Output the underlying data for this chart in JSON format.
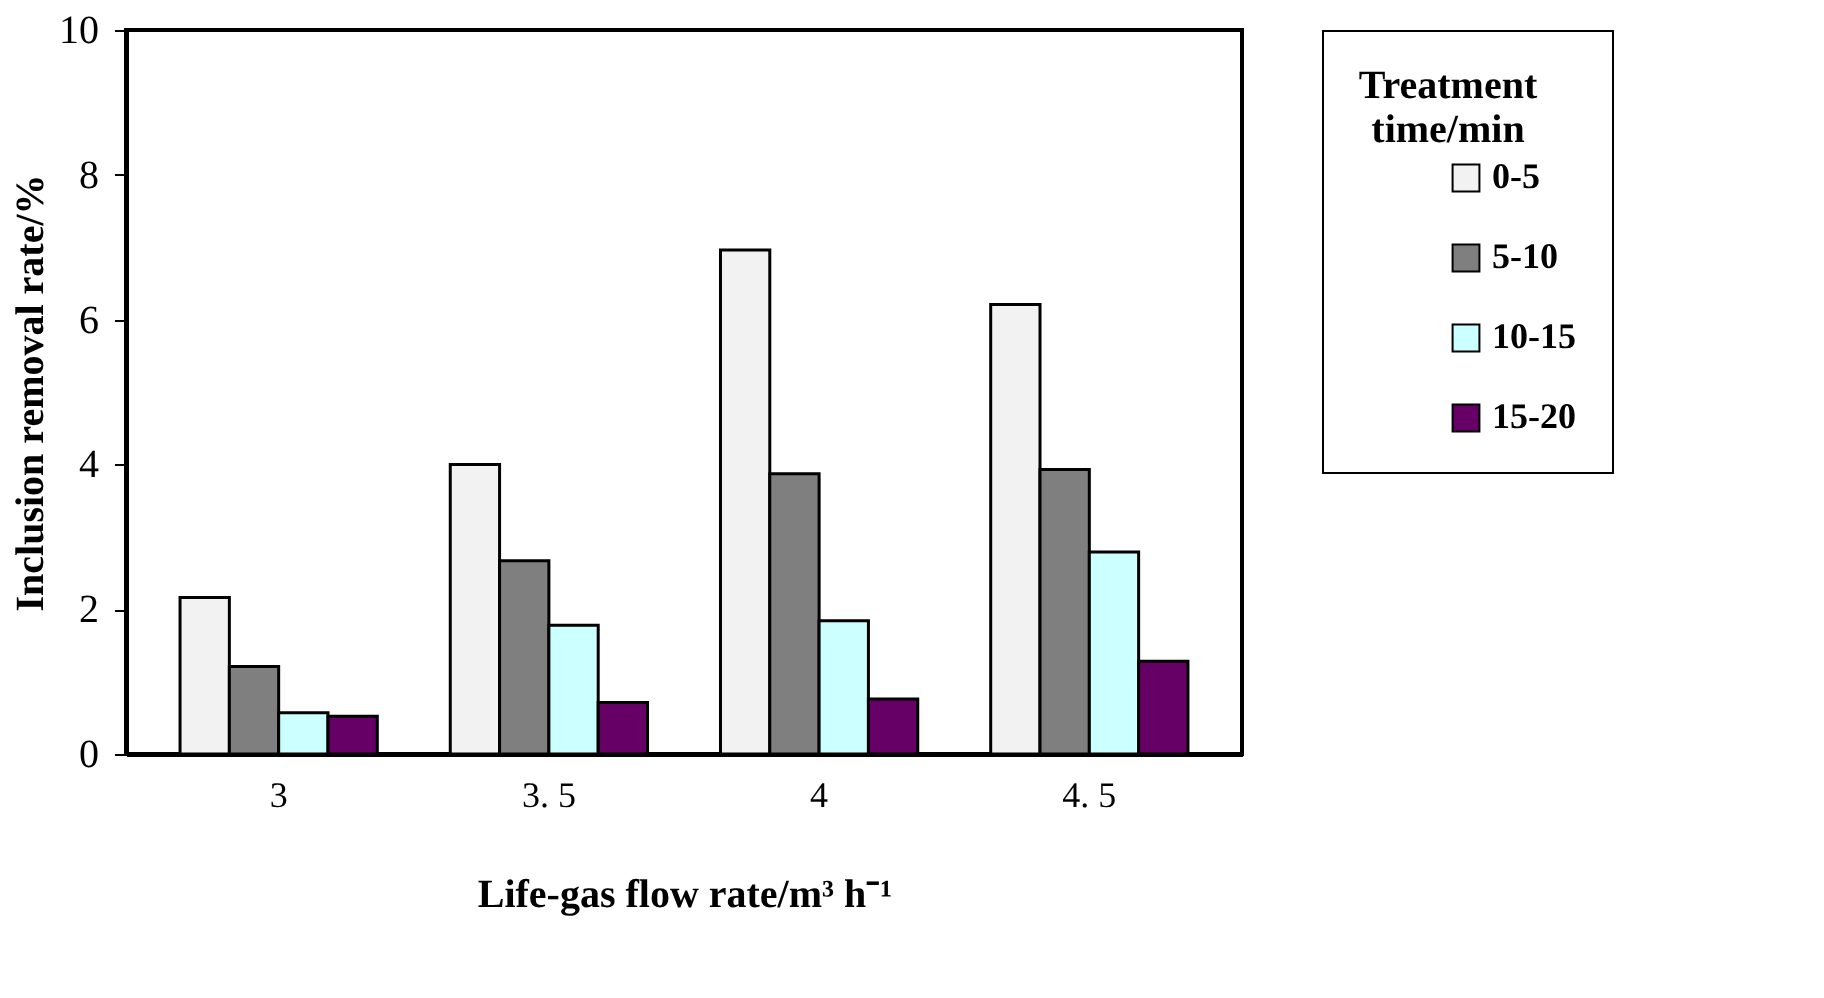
{
  "chart_data": {
    "type": "bar",
    "xlabel": "Life-gas flow rate/m³ h⁻¹",
    "ylabel": "Inclusion removal rate/%",
    "legend_title": "Treatment time/min",
    "categories": [
      "3",
      "3. 5",
      "4",
      "4. 5"
    ],
    "series": [
      {
        "name": "0-5",
        "color": "#f2f2f2",
        "values": [
          2.16,
          4.0,
          6.96,
          6.21
        ]
      },
      {
        "name": "5-10",
        "color": "#7f7f7f",
        "values": [
          1.21,
          2.67,
          3.87,
          3.93
        ]
      },
      {
        "name": "10-15",
        "color": "#ccffff",
        "values": [
          0.57,
          1.78,
          1.84,
          2.79
        ]
      },
      {
        "name": "15-20",
        "color": "#660066",
        "values": [
          0.52,
          0.71,
          0.76,
          1.28
        ]
      }
    ],
    "ylim": [
      0,
      10
    ],
    "yticks": [
      0,
      2,
      4,
      6,
      8,
      10
    ],
    "grid": false,
    "legend": "right"
  }
}
